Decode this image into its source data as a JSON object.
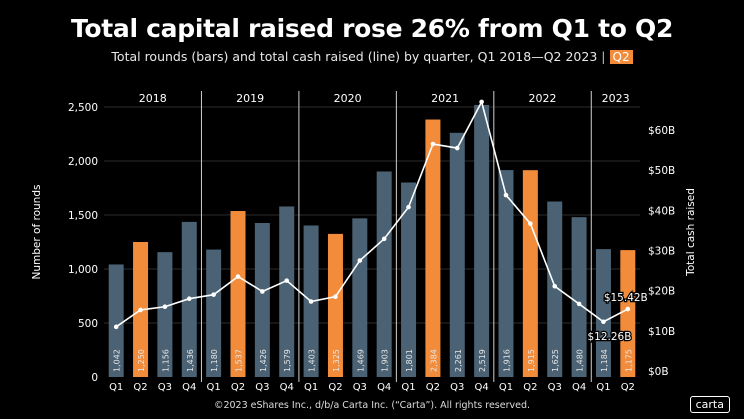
{
  "title": "Total capital raised rose 26% from Q1 to Q2",
  "subtitle": "Total rounds (bars) and total cash raised (line) by quarter, Q1 2018—Q2 2023",
  "subtitle_tag": "Q2",
  "footer": "©2023 eShares Inc., d/b/a Carta Inc. (“Carta”). All rights reserved.",
  "logo": "carta",
  "colors": {
    "background": "#000000",
    "bar_default": "#4a6274",
    "bar_highlight": "#f28c3b",
    "line": "#ffffff",
    "grid": "#3a3a3a"
  },
  "chart_data": {
    "type": "bar",
    "title": "Total capital raised rose 26% from Q1 to Q2",
    "ylabel": "Number of rounds",
    "y2label": "Total cash raised",
    "ylim": [
      0,
      2500
    ],
    "y2lim": [
      0,
      70
    ],
    "yticks": [
      "0",
      "500",
      "1,000",
      "1,500",
      "2,000",
      "2,500"
    ],
    "y2ticks": [
      "$0B",
      "$10B",
      "$20B",
      "$30B",
      "$40B",
      "$50B",
      "$60B"
    ],
    "years": [
      "2018",
      "2019",
      "2020",
      "2021",
      "2022",
      "2023"
    ],
    "categories": [
      "Q1",
      "Q2",
      "Q3",
      "Q4",
      "Q1",
      "Q2",
      "Q3",
      "Q4",
      "Q1",
      "Q2",
      "Q3",
      "Q4",
      "Q1",
      "Q2",
      "Q3",
      "Q4",
      "Q1",
      "Q2",
      "Q3",
      "Q4",
      "Q1",
      "Q2"
    ],
    "category_years": [
      "2018",
      "2018",
      "2018",
      "2018",
      "2019",
      "2019",
      "2019",
      "2019",
      "2020",
      "2020",
      "2020",
      "2020",
      "2021",
      "2021",
      "2021",
      "2021",
      "2022",
      "2022",
      "2022",
      "2022",
      "2023",
      "2023"
    ],
    "series": [
      {
        "name": "Total rounds",
        "type": "bar",
        "values": [
          1042,
          1250,
          1156,
          1436,
          1180,
          1537,
          1426,
          1579,
          1403,
          1325,
          1469,
          1903,
          1801,
          2384,
          2261,
          2519,
          1916,
          1915,
          1625,
          1480,
          1184,
          1175
        ],
        "labels": [
          "1,042",
          "1,250",
          "1,156",
          "1,436",
          "1,180",
          "1,537",
          "1,426",
          "1,579",
          "1,403",
          "1,325",
          "1,469",
          "1,903",
          "1,801",
          "2,384",
          "2,261",
          "2,519",
          "1,916",
          "1,915",
          "1,625",
          "1,480",
          "1,184",
          "1,175"
        ],
        "highlight": [
          false,
          true,
          false,
          false,
          false,
          true,
          false,
          false,
          false,
          true,
          false,
          false,
          false,
          true,
          false,
          false,
          false,
          true,
          false,
          false,
          false,
          true
        ]
      },
      {
        "name": "Total cash raised",
        "type": "line",
        "axis": "right",
        "values": [
          11.0,
          15.2,
          16.0,
          18.0,
          19.0,
          23.5,
          19.8,
          22.5,
          17.3,
          18.5,
          27.5,
          32.9,
          40.8,
          56.5,
          55.5,
          67.0,
          43.8,
          36.7,
          21.1,
          16.7,
          12.26,
          15.42
        ]
      }
    ],
    "annotations": [
      {
        "index": 20,
        "text": "$12.26B"
      },
      {
        "index": 21,
        "text": "$15.42B"
      }
    ]
  }
}
